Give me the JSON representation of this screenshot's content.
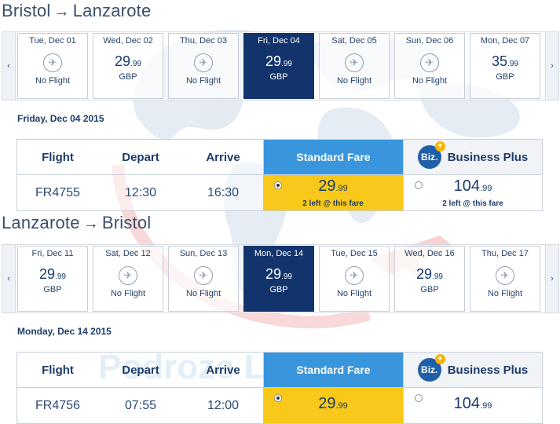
{
  "watermark": {
    "text": "Podroze Lubie.sk"
  },
  "colors": {
    "selected_day": "#12336b",
    "standard_header": "#3a96dc",
    "standard_price": "#f8c91a"
  },
  "outbound": {
    "from": "Bristol",
    "to": "Lanzarote",
    "arrow": "→",
    "days": [
      {
        "label": "Tue, Dec 01",
        "no_flight": "No Flight"
      },
      {
        "label": "Wed, Dec 02",
        "price": "29",
        "cents": ".99",
        "currency": "GBP"
      },
      {
        "label": "Thu, Dec 03",
        "no_flight": "No Flight"
      },
      {
        "label": "Fri, Dec 04",
        "price": "29",
        "cents": ".99",
        "currency": "GBP",
        "selected": true
      },
      {
        "label": "Sat, Dec 05",
        "no_flight": "No Flight"
      },
      {
        "label": "Sun, Dec 06",
        "no_flight": "No Flight"
      },
      {
        "label": "Mon, Dec 07",
        "price": "35",
        "cents": ".99",
        "currency": "GBP"
      }
    ],
    "date_heading": "Friday, Dec 04 2015",
    "headers": {
      "flight": "Flight",
      "depart": "Depart",
      "arrive": "Arrive",
      "standard": "Standard Fare",
      "business": "Business Plus",
      "biz_logo": "Biz."
    },
    "flight": {
      "number": "FR4755",
      "depart": "12:30",
      "arrive": "16:30",
      "standard": {
        "price": "29",
        "cents": ".99",
        "note": "2 left @ this fare"
      },
      "business": {
        "price": "104",
        "cents": ".99",
        "note": "2 left @ this fare"
      }
    }
  },
  "inbound": {
    "from": "Lanzarote",
    "to": "Bristol",
    "arrow": "→",
    "days": [
      {
        "label": "Fri, Dec 11",
        "price": "29",
        "cents": ".99",
        "currency": "GBP"
      },
      {
        "label": "Sat, Dec 12",
        "no_flight": "No Flight"
      },
      {
        "label": "Sun, Dec 13",
        "no_flight": "No Flight"
      },
      {
        "label": "Mon, Dec 14",
        "price": "29",
        "cents": ".99",
        "currency": "GBP",
        "selected": true
      },
      {
        "label": "Tue, Dec 15",
        "no_flight": "No Flight"
      },
      {
        "label": "Wed, Dec 16",
        "price": "29",
        "cents": ".99",
        "currency": "GBP"
      },
      {
        "label": "Thu, Dec 17",
        "no_flight": "No Flight"
      }
    ],
    "date_heading": "Monday, Dec 14 2015",
    "headers": {
      "flight": "Flight",
      "depart": "Depart",
      "arrive": "Arrive",
      "standard": "Standard Fare",
      "business": "Business Plus",
      "biz_logo": "Biz."
    },
    "flight": {
      "number": "FR4756",
      "depart": "07:55",
      "arrive": "12:00",
      "standard": {
        "price": "29",
        "cents": ".99"
      },
      "business": {
        "price": "104",
        "cents": ".99"
      }
    }
  },
  "nav": {
    "prev": "‹",
    "next": "›"
  }
}
